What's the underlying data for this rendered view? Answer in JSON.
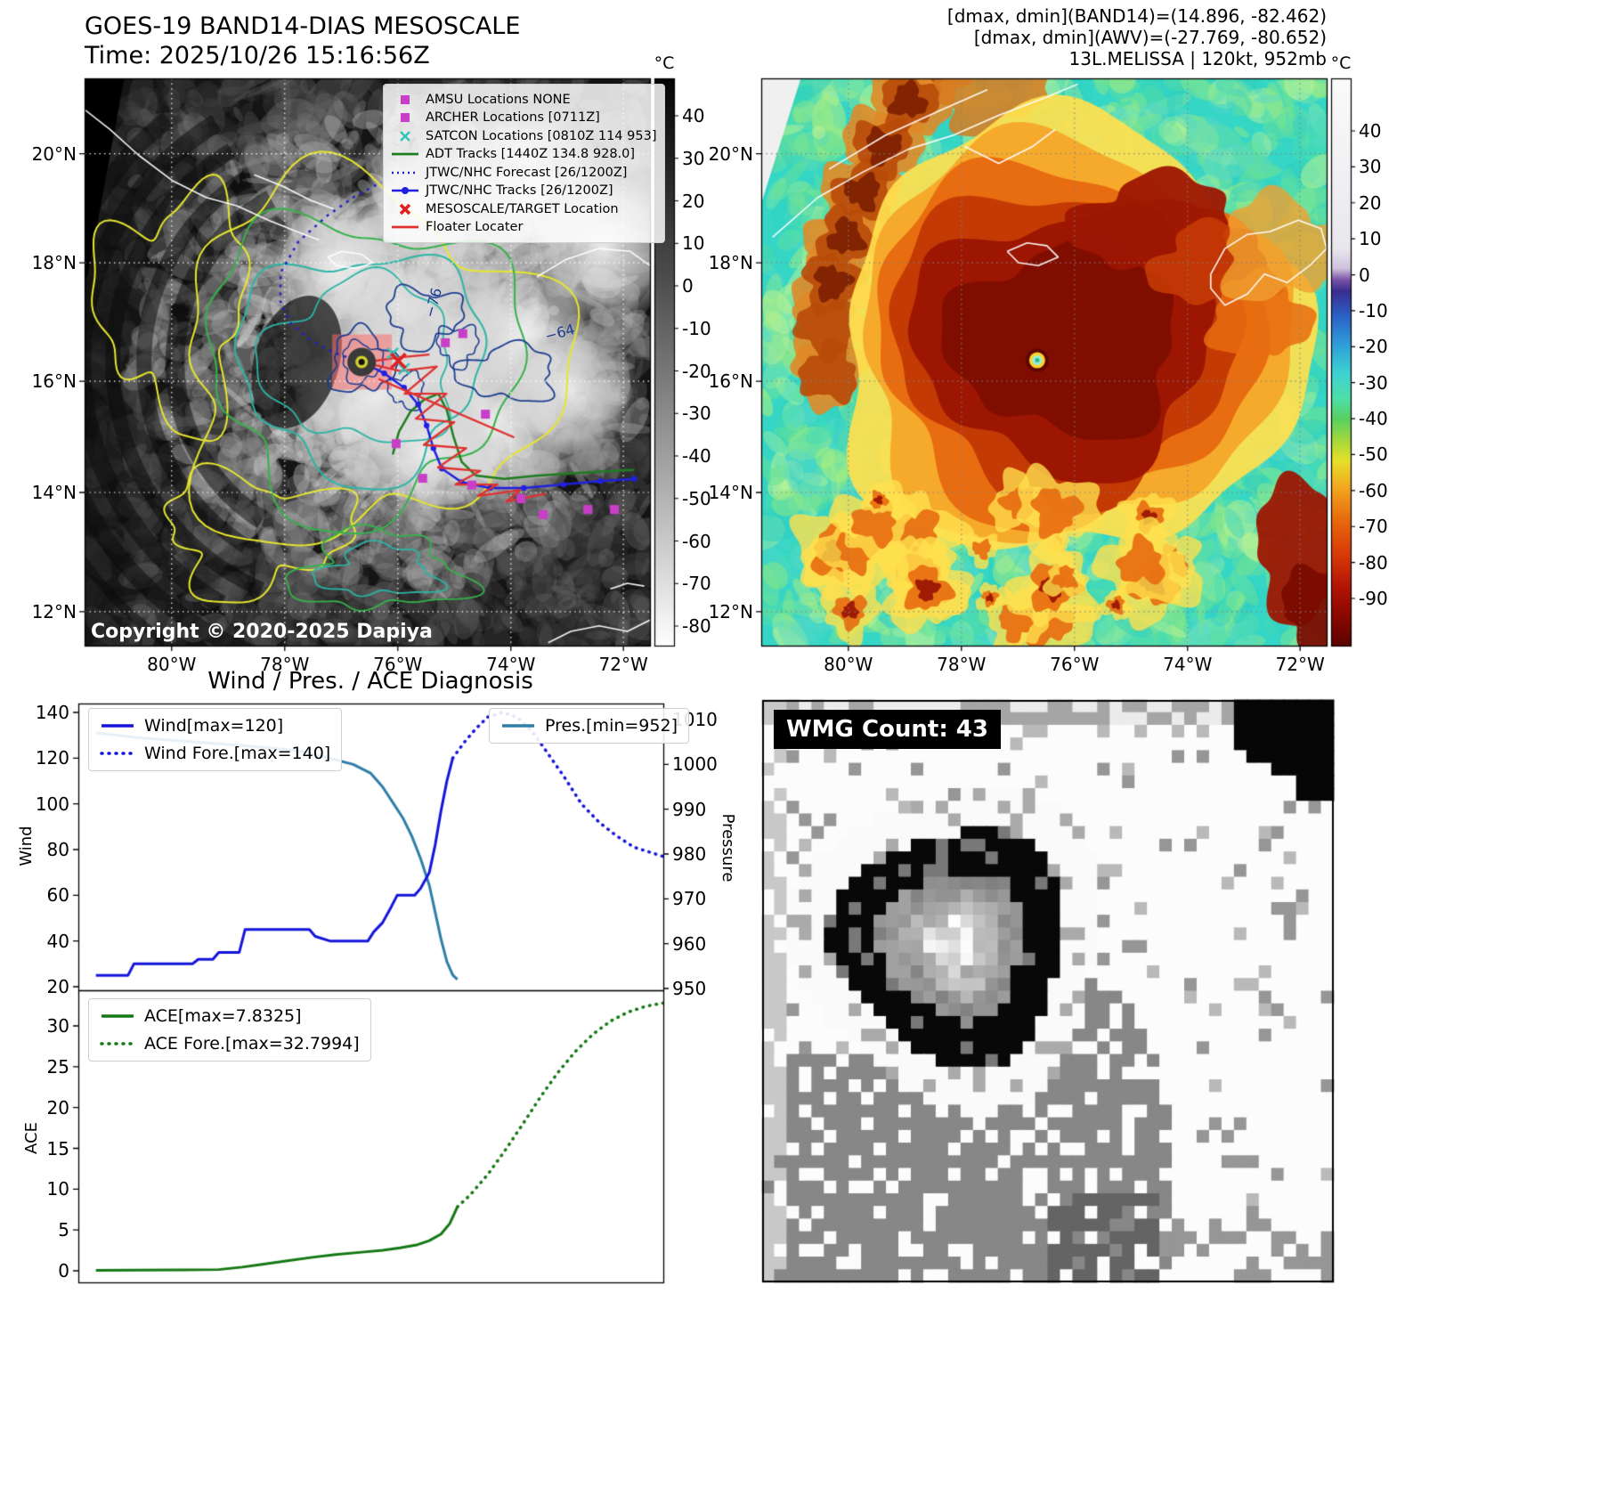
{
  "band14": {
    "title": "GOES-19 BAND14-DIAS MESOSCALE",
    "subtitle": "Time: 2025/10/26 15:16:56Z",
    "copyright": "Copyright © 2020-2025 Dapiya",
    "colorbar_label": "°C",
    "colorbar_ticks": [
      40,
      30,
      20,
      10,
      0,
      -10,
      -20,
      -30,
      -40,
      -50,
      -60,
      -70,
      -80
    ],
    "x_ticks": [
      "80°W",
      "78°W",
      "76°W",
      "74°W",
      "72°W"
    ],
    "y_ticks": [
      "20°N",
      "18°N",
      "16°N",
      "14°N",
      "12°N"
    ],
    "contour_labels": [
      "−76",
      "−64"
    ],
    "legend": [
      {
        "label": "AMSU Locations NONE",
        "marker": "square",
        "color": "#c93ec9"
      },
      {
        "label": "ARCHER Locations [0711Z]",
        "marker": "square",
        "color": "#c93ec9"
      },
      {
        "label": "SATCON Locations [0810Z 114 953]",
        "marker": "x",
        "color": "#2ec4b6"
      },
      {
        "label": "ADT Tracks [1440Z 134.8 928.0]",
        "marker": "line",
        "color": "#1e7d1e"
      },
      {
        "label": "JTWC/NHC Forecast [26/1200Z]",
        "marker": "dotted",
        "color": "#2020cc"
      },
      {
        "label": "JTWC/NHC Tracks [26/1200Z]",
        "marker": "line-dot",
        "color": "#2020e0"
      },
      {
        "label": "MESOSCALE/TARGET Location",
        "marker": "x-bold",
        "color": "#e02020"
      },
      {
        "label": "Floater Locater",
        "marker": "line",
        "color": "#e03030"
      }
    ]
  },
  "awv": {
    "header_lines": [
      "[dmax, dmin](BAND14)=(14.896, -82.462)",
      "[dmax, dmin](AWV)=(-27.769, -80.652)",
      "13L.MELISSA | 120kt, 952mb"
    ],
    "colorbar_label": "°C",
    "colorbar_ticks": [
      40,
      30,
      20,
      10,
      0,
      -10,
      -20,
      -30,
      -40,
      -50,
      -60,
      -70,
      -80,
      -90
    ],
    "x_ticks": [
      "80°W",
      "78°W",
      "76°W",
      "74°W",
      "72°W"
    ],
    "y_ticks": [
      "20°N",
      "18°N",
      "16°N",
      "14°N",
      "12°N"
    ]
  },
  "diagnosis": {
    "title": "Wind / Pres. / ACE Diagnosis"
  },
  "wmg": {
    "label": "WMG Count: 43"
  },
  "chart_data": [
    {
      "type": "line",
      "title": "Wind / Pres. / ACE Diagnosis",
      "ylabel_left": "Wind",
      "ylabel_right": "Pressure",
      "ylim_left": [
        20,
        140
      ],
      "ylim_right": [
        950,
        1010
      ],
      "yticks_left": [
        20,
        40,
        60,
        80,
        100,
        120,
        140
      ],
      "yticks_right": [
        950,
        960,
        970,
        980,
        990,
        1000,
        1010
      ],
      "grid": false,
      "legend_position": "upper left / upper right",
      "series": [
        {
          "name": "Wind[max=120]",
          "axis": "left",
          "style": "solid",
          "color": "#1414dc",
          "width": 3,
          "x": [
            0.03,
            0.085,
            0.095,
            0.195,
            0.205,
            0.23,
            0.24,
            0.275,
            0.285,
            0.395,
            0.405,
            0.43,
            0.495,
            0.505,
            0.52,
            0.535,
            0.545,
            0.575,
            0.585,
            0.6,
            0.61,
            0.62,
            0.63,
            0.64
          ],
          "y": [
            25,
            25,
            30,
            30,
            32,
            32,
            35,
            35,
            45,
            45,
            42,
            40,
            40,
            44,
            48,
            55,
            60,
            60,
            63,
            70,
            82,
            97,
            110,
            120
          ]
        },
        {
          "name": "Wind Fore.[max=140]",
          "axis": "left",
          "style": "dotted",
          "color": "#1414dc",
          "width": 3.5,
          "x": [
            0.64,
            0.66,
            0.68,
            0.7,
            0.725,
            0.75,
            0.775,
            0.8,
            0.83,
            0.86,
            0.89,
            0.92,
            0.95,
            1.0
          ],
          "y": [
            120,
            127,
            133,
            138,
            140,
            138,
            132,
            123,
            112,
            100,
            92,
            86,
            81,
            77
          ]
        },
        {
          "name": "Pres.[min=952]",
          "axis": "right",
          "style": "solid",
          "color": "#2e7fa8",
          "width": 3,
          "x": [
            0.03,
            0.1,
            0.2,
            0.3,
            0.38,
            0.44,
            0.47,
            0.5,
            0.52,
            0.54,
            0.555,
            0.57,
            0.585,
            0.6,
            0.61,
            0.62,
            0.63,
            0.64,
            0.648
          ],
          "y": [
            1007,
            1006,
            1005,
            1004,
            1003,
            1001,
            1000,
            998,
            995,
            991,
            988,
            984,
            979,
            973,
            967,
            961,
            956,
            953,
            952
          ]
        }
      ]
    },
    {
      "type": "line",
      "ylabel_left": "ACE",
      "ylim_left": [
        0,
        33
      ],
      "yticks_left": [
        0,
        5,
        10,
        15,
        20,
        25,
        30
      ],
      "grid": false,
      "series": [
        {
          "name": "ACE[max=7.8325]",
          "axis": "left",
          "style": "solid",
          "color": "#147814",
          "width": 3,
          "x": [
            0.03,
            0.1,
            0.18,
            0.24,
            0.28,
            0.32,
            0.36,
            0.4,
            0.44,
            0.48,
            0.52,
            0.55,
            0.58,
            0.6,
            0.62,
            0.635,
            0.648
          ],
          "y": [
            0.05,
            0.08,
            0.1,
            0.15,
            0.45,
            0.85,
            1.25,
            1.65,
            2.0,
            2.25,
            2.5,
            2.8,
            3.2,
            3.7,
            4.5,
            5.8,
            7.83
          ]
        },
        {
          "name": "ACE Fore.[max=32.7994]",
          "axis": "left",
          "style": "dotted",
          "color": "#147814",
          "width": 3.5,
          "x": [
            0.648,
            0.67,
            0.7,
            0.73,
            0.76,
            0.79,
            0.82,
            0.85,
            0.88,
            0.91,
            0.94,
            0.97,
            1.0
          ],
          "y": [
            7.83,
            9.3,
            11.8,
            14.8,
            18.0,
            21.3,
            24.3,
            26.9,
            29.0,
            30.6,
            31.7,
            32.4,
            32.8
          ]
        }
      ]
    }
  ]
}
